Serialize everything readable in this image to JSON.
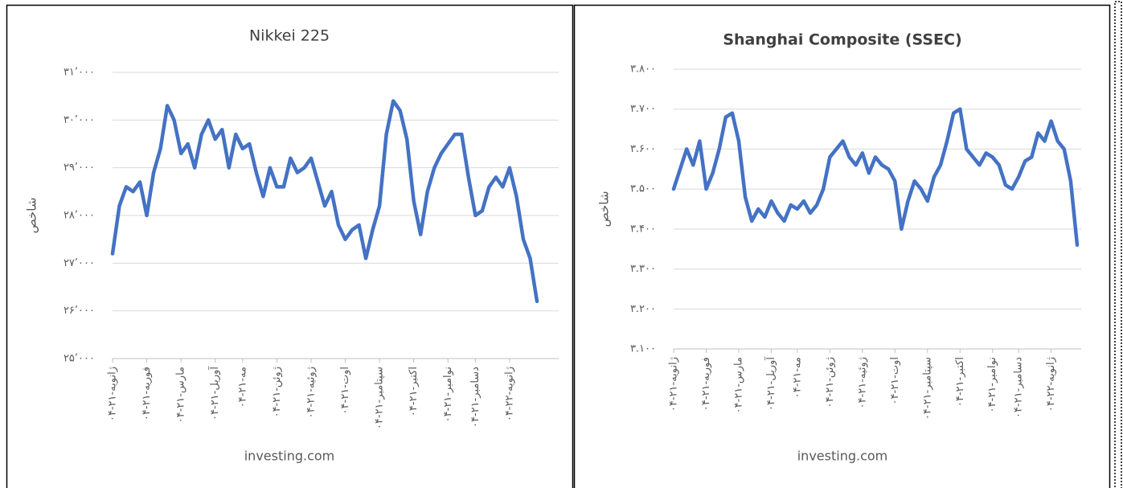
{
  "chart_data": [
    {
      "type": "line",
      "title": "Nikkei 225",
      "title_bold": false,
      "y_label": "شاخص",
      "source": "investing.com",
      "categories": [
        "۰۴-ژانویه-۲۱",
        null,
        null,
        null,
        null,
        "۰۴-فوریه-۲۱",
        null,
        null,
        null,
        null,
        "۰۴-مارس-۲۱",
        null,
        null,
        null,
        null,
        "۰۴-آوریل-۲۱",
        null,
        null,
        null,
        "۰۴-مه-۲۱",
        null,
        null,
        null,
        null,
        "۰۴-ژوئن-۲۱",
        null,
        null,
        null,
        null,
        "۰۴-ژوئیه-۲۱",
        null,
        null,
        null,
        null,
        "۰۴-اوت-۲۱",
        null,
        null,
        null,
        null,
        "۰۴-سپتامبر-۲۱",
        null,
        null,
        null,
        null,
        "۰۴-اکتبر-۲۱",
        null,
        null,
        null,
        null,
        "۰۴-نوامبر-۲۱",
        null,
        null,
        null,
        "۰۴-دسامبر-۲۱",
        null,
        null,
        null,
        null,
        "۰۴-ژانویه-۲۲",
        null,
        null,
        null,
        null
      ],
      "series": [
        {
          "color": "#4472c4",
          "values": [
            27200,
            28200,
            28600,
            28500,
            28700,
            28000,
            28900,
            29400,
            30300,
            30000,
            29300,
            29500,
            29000,
            29700,
            30000,
            29600,
            29800,
            29000,
            29700,
            29400,
            29500,
            28900,
            28400,
            29000,
            28600,
            28600,
            29200,
            28900,
            29000,
            29200,
            28700,
            28200,
            28500,
            27800,
            27500,
            27700,
            27800,
            27100,
            27700,
            28200,
            29700,
            30400,
            30200,
            29600,
            28300,
            27600,
            28500,
            29000,
            29300,
            29500,
            29700,
            29700,
            28800,
            28000,
            28100,
            28600,
            28800,
            28600,
            29000,
            28400,
            27500,
            27100,
            26200
          ]
        }
      ],
      "ylim": [
        25000,
        31000
      ],
      "yticks": [
        {
          "value": 25000,
          "label": "۲۵’۰۰۰"
        },
        {
          "value": 26000,
          "label": "۲۶’۰۰۰"
        },
        {
          "value": 27000,
          "label": "۲۷’۰۰۰"
        },
        {
          "value": 28000,
          "label": "۲۸’۰۰۰"
        },
        {
          "value": 29000,
          "label": "۲۹’۰۰۰"
        },
        {
          "value": 30000,
          "label": "۳۰’۰۰۰"
        },
        {
          "value": 31000,
          "label": "۳۱’۰۰۰"
        }
      ],
      "grid": true
    },
    {
      "type": "line",
      "title": "Shanghai Composite (SSEC)",
      "title_bold": true,
      "y_label": "شاخص",
      "source": "investing.com",
      "categories": [
        "۰۴-ژانویه-۲۱",
        null,
        null,
        null,
        null,
        "۰۴-فوریه-۲۱",
        null,
        null,
        null,
        null,
        "۰۴-مارس-۲۱",
        null,
        null,
        null,
        null,
        "۰۴-آوریل-۲۱",
        null,
        null,
        null,
        "۰۴-مه-۲۱",
        null,
        null,
        null,
        null,
        "۰۴-ژوئن-۲۱",
        null,
        null,
        null,
        null,
        "۰۴-ژوئیه-۲۱",
        null,
        null,
        null,
        null,
        "۰۴-اوت-۲۱",
        null,
        null,
        null,
        null,
        "۰۴-سپتامبر-۲۱",
        null,
        null,
        null,
        null,
        "۰۴-اکتبر-۲۱",
        null,
        null,
        null,
        null,
        "۰۴-نوامبر-۲۱",
        null,
        null,
        null,
        "۰۴-دسامبر-۲۱",
        null,
        null,
        null,
        null,
        "۰۴-ژانویه-۲۲",
        null,
        null,
        null,
        null
      ],
      "series": [
        {
          "color": "#4472c4",
          "values": [
            3500,
            3550,
            3600,
            3560,
            3620,
            3500,
            3540,
            3600,
            3680,
            3690,
            3620,
            3480,
            3420,
            3450,
            3430,
            3470,
            3440,
            3420,
            3460,
            3450,
            3470,
            3440,
            3460,
            3500,
            3580,
            3600,
            3620,
            3580,
            3560,
            3590,
            3540,
            3580,
            3560,
            3550,
            3520,
            3400,
            3470,
            3520,
            3500,
            3470,
            3530,
            3560,
            3620,
            3690,
            3700,
            3600,
            3580,
            3560,
            3590,
            3580,
            3560,
            3510,
            3500,
            3530,
            3570,
            3580,
            3640,
            3620,
            3670,
            3620,
            3600,
            3520,
            3360
          ]
        }
      ],
      "ylim": [
        3100,
        3800
      ],
      "yticks": [
        {
          "value": 3100,
          "label": "۳.۱۰۰"
        },
        {
          "value": 3200,
          "label": "۳.۲۰۰"
        },
        {
          "value": 3300,
          "label": "۳.۳۰۰"
        },
        {
          "value": 3400,
          "label": "۳.۴۰۰"
        },
        {
          "value": 3500,
          "label": "۳.۵۰۰"
        },
        {
          "value": 3600,
          "label": "۳.۶۰۰"
        },
        {
          "value": 3700,
          "label": "۳.۷۰۰"
        },
        {
          "value": 3800,
          "label": "۳.۸۰۰"
        }
      ],
      "grid": true
    }
  ]
}
